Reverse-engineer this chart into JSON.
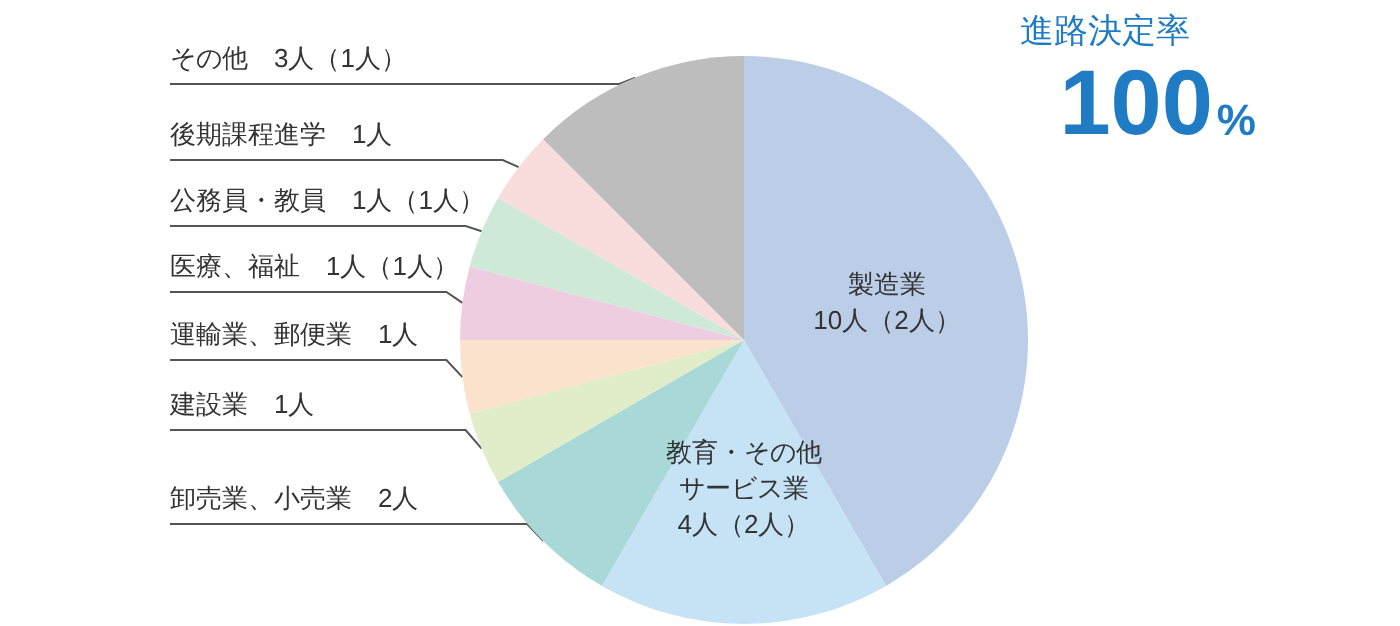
{
  "chart_data": {
    "type": "pie",
    "title": "進路決定率",
    "annotations": [
      "100%"
    ],
    "categories": [
      "製造業",
      "教育・その他サービス業",
      "卸売業、小売業",
      "建設業",
      "運輸業、郵便業",
      "医療、福祉",
      "公務員・教員",
      "後期課程進学",
      "その他"
    ],
    "values": [
      10,
      4,
      2,
      1,
      1,
      1,
      1,
      1,
      3
    ],
    "value_labels": [
      "10人（2人）",
      "4人（2人）",
      "2人",
      "1人",
      "1人",
      "1人（1人）",
      "1人（1人）",
      "1人",
      "3人（1人）"
    ],
    "colors": [
      "#bccde8",
      "#c5e3f5",
      "#a9d8d8",
      "#e1ecc8",
      "#fae2cc",
      "#eecde0",
      "#cfe9d9",
      "#f9dcdc",
      "#bdbdbd"
    ],
    "legend": false
  }
}
